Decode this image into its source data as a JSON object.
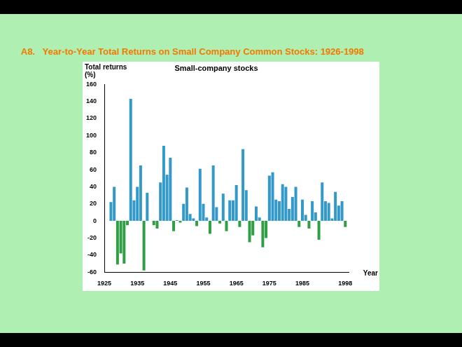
{
  "header": {
    "title": "A8.   Year-to-Year Total Returns on Small Company Common Stocks: 1926-1998"
  },
  "chart_data": {
    "type": "bar",
    "title": "Small-company stocks",
    "x_label": "Year",
    "y_label": "Total returns (%)",
    "x": [
      1926,
      1927,
      1928,
      1929,
      1930,
      1931,
      1932,
      1933,
      1934,
      1935,
      1936,
      1937,
      1938,
      1939,
      1940,
      1941,
      1942,
      1943,
      1944,
      1945,
      1946,
      1947,
      1948,
      1949,
      1950,
      1951,
      1952,
      1953,
      1954,
      1955,
      1956,
      1957,
      1958,
      1959,
      1960,
      1961,
      1962,
      1963,
      1964,
      1965,
      1966,
      1967,
      1968,
      1969,
      1970,
      1971,
      1972,
      1973,
      1974,
      1975,
      1976,
      1977,
      1978,
      1979,
      1980,
      1981,
      1982,
      1983,
      1984,
      1985,
      1986,
      1987,
      1988,
      1989,
      1990,
      1991,
      1992,
      1993,
      1994,
      1995,
      1996,
      1997,
      1998
    ],
    "values": [
      0,
      22,
      40,
      -51,
      -38,
      -50,
      -5,
      143,
      24,
      40,
      65,
      -58,
      33,
      0,
      -5,
      -9,
      45,
      88,
      54,
      74,
      -12,
      1,
      -2,
      20,
      39,
      8,
      3,
      -6,
      61,
      20,
      4,
      -15,
      65,
      16,
      -3,
      32,
      -12,
      24,
      24,
      42,
      -7,
      84,
      36,
      -25,
      -17,
      17,
      4,
      -31,
      -20,
      53,
      57,
      25,
      23,
      43,
      40,
      14,
      28,
      40,
      -7,
      25,
      7,
      -9,
      23,
      10,
      -22,
      45,
      23,
      21,
      3,
      34,
      18,
      23,
      -7
    ],
    "colors": [
      "#3399c8",
      "#3399c8",
      "#3399c8",
      "#2f9e44",
      "#2f9e44",
      "#2f9e44",
      "#2f9e44",
      "#3399c8",
      "#3399c8",
      "#3399c8",
      "#3399c8",
      "#2f9e44",
      "#3399c8",
      "#3399c8",
      "#2f9e44",
      "#2f9e44",
      "#3399c8",
      "#3399c8",
      "#3399c8",
      "#3399c8",
      "#2f9e44",
      "#3399c8",
      "#2f9e44",
      "#3399c8",
      "#3399c8",
      "#3399c8",
      "#3399c8",
      "#2f9e44",
      "#3399c8",
      "#3399c8",
      "#3399c8",
      "#2f9e44",
      "#3399c8",
      "#3399c8",
      "#2f9e44",
      "#3399c8",
      "#2f9e44",
      "#3399c8",
      "#3399c8",
      "#3399c8",
      "#2f9e44",
      "#3399c8",
      "#3399c8",
      "#2f9e44",
      "#2f9e44",
      "#3399c8",
      "#3399c8",
      "#2f9e44",
      "#2f9e44",
      "#3399c8",
      "#3399c8",
      "#3399c8",
      "#3399c8",
      "#3399c8",
      "#3399c8",
      "#3399c8",
      "#3399c8",
      "#3399c8",
      "#2f9e44",
      "#3399c8",
      "#3399c8",
      "#2f9e44",
      "#3399c8",
      "#3399c8",
      "#2f9e44",
      "#3399c8",
      "#3399c8",
      "#3399c8",
      "#3399c8",
      "#3399c8",
      "#3399c8",
      "#3399c8",
      "#2f9e44"
    ],
    "xlim": [
      1925,
      1999
    ],
    "xticks": [
      1925,
      1935,
      1945,
      1955,
      1965,
      1975,
      1985,
      1998
    ],
    "ylim": [
      -60,
      160
    ],
    "yticks": [
      -60,
      -40,
      -20,
      0,
      20,
      40,
      60,
      80,
      100,
      120,
      140,
      160
    ],
    "grid": false
  }
}
